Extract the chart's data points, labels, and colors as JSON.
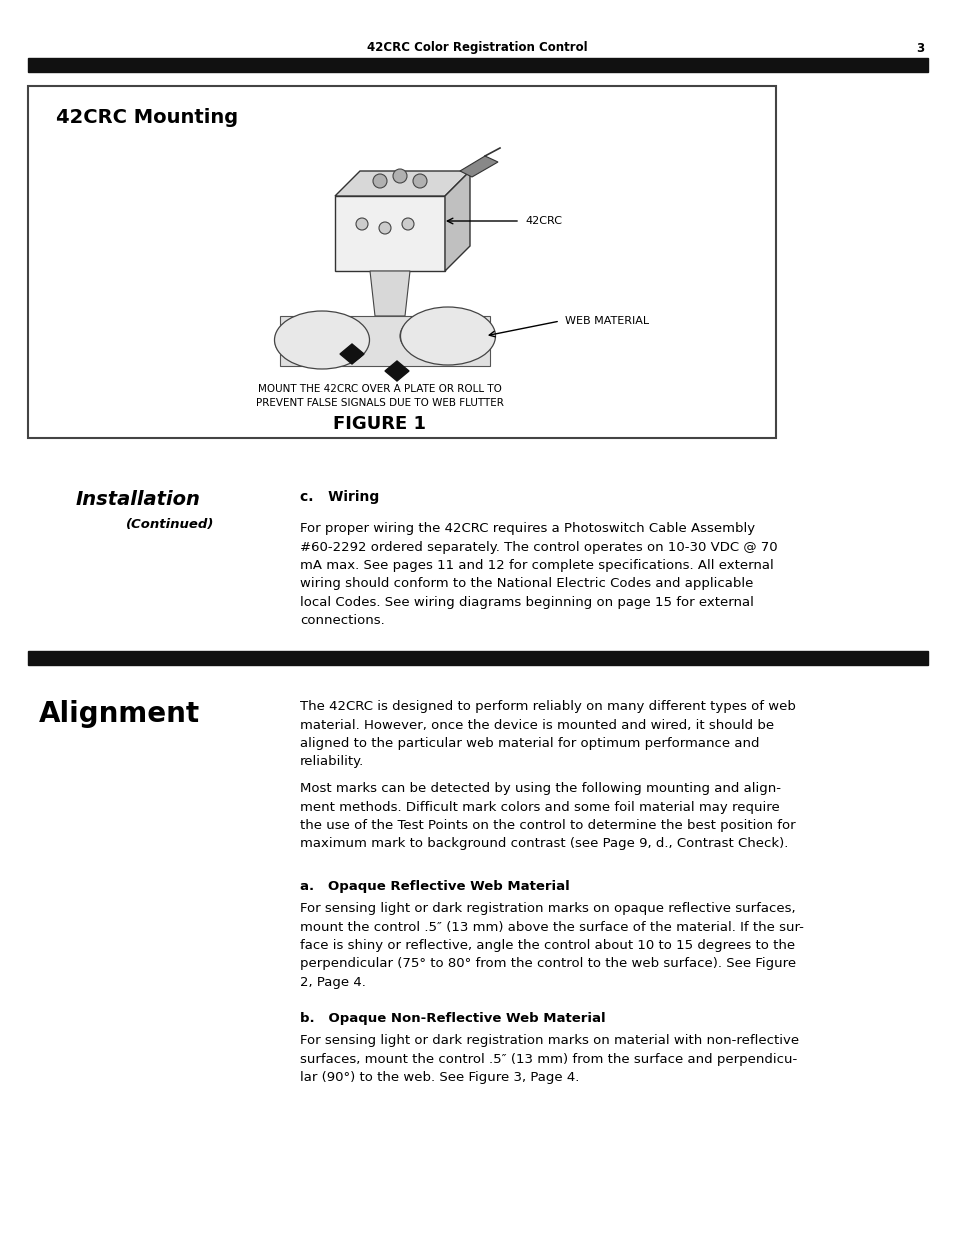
{
  "page_title": "42CRC Color Registration Control",
  "page_number": "3",
  "bg_color": "#ffffff",
  "header_bar_color": "#111111",
  "section1_title": "42CRC Mounting",
  "figure_caption": "MOUNT THE 42CRC OVER A PLATE OR ROLL TO\nPREVENT FALSE SIGNALS DUE TO WEB FLUTTER",
  "figure_label": "FIGURE 1",
  "label_42crc": "42CRC",
  "label_web": "WEB MATERIAL",
  "section2_title": "Installation",
  "section2_subtitle": "(Continued)",
  "section2_sub": "c.   Wiring",
  "section2_body": "For proper wiring the 42CRC requires a Photoswitch Cable Assembly\n#60-2292 ordered separately. The control operates on 10-30 VDC @ 70\nmA max. See pages 11 and 12 for complete specifications. All external\nwiring should conform to the National Electric Codes and applicable\nlocal Codes. See wiring diagrams beginning on page 15 for external\nconnections.",
  "section3_title": "Alignment",
  "section3_body1": "The 42CRC is designed to perform reliably on many different types of web\nmaterial. However, once the device is mounted and wired, it should be\naligned to the particular web material for optimum performance and\nreliability.",
  "section3_body2": "Most marks can be detected by using the following mounting and align-\nment methods. Difficult mark colors and some foil material may require\nthe use of the Test Points on the control to determine the best position for\nmaximum mark to background contrast (see Page 9, d., Contrast Check).",
  "section3_sub_a": "a.   Opaque Reflective Web Material",
  "section3_body_a": "For sensing light or dark registration marks on opaque reflective surfaces,\nmount the control .5″ (13 mm) above the surface of the material. If the sur-\nface is shiny or reflective, angle the control about 10 to 15 degrees to the\nperpendicular (75° to 80° from the control to the web surface). See Figure\n2, Page 4.",
  "section3_sub_b": "b.   Opaque Non-Reflective Web Material",
  "section3_body_b": "For sensing light or dark registration marks on material with non-reflective\nsurfaces, mount the control .5″ (13 mm) from the surface and perpendicu-\nlar (90°) to the web. See Figure 3, Page 4."
}
